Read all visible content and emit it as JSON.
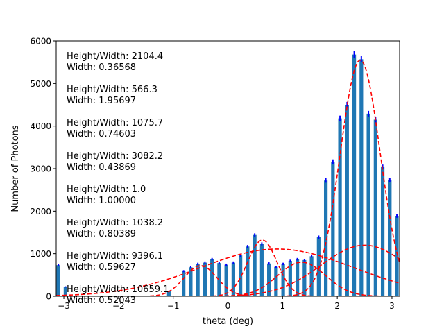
{
  "chart_data": {
    "type": "bar",
    "title": "",
    "xlabel": "theta (deg)",
    "ylabel": "Number of Photons",
    "xlim": [
      -3.14,
      3.14
    ],
    "ylim": [
      0,
      6000
    ],
    "xticks": [
      -3,
      -2,
      -1,
      0,
      1,
      2,
      3
    ],
    "yticks": [
      0,
      1000,
      2000,
      3000,
      4000,
      5000,
      6000
    ],
    "bar_color": "#1f77b4",
    "errorbar_color": "#0000ff",
    "fit_color": "#ff0000",
    "bars": {
      "x": [
        -3.1,
        -2.97,
        -1.08,
        -0.81,
        -0.68,
        -0.55,
        -0.42,
        -0.29,
        -0.16,
        -0.03,
        0.1,
        0.23,
        0.36,
        0.49,
        0.62,
        0.75,
        0.88,
        1.01,
        1.14,
        1.27,
        1.4,
        1.53,
        1.66,
        1.79,
        1.92,
        2.05,
        2.18,
        2.31,
        2.44,
        2.57,
        2.7,
        2.83,
        2.96,
        3.09
      ],
      "y": [
        730,
        220,
        120,
        590,
        680,
        760,
        790,
        870,
        780,
        740,
        790,
        960,
        1170,
        1440,
        1230,
        770,
        690,
        760,
        830,
        870,
        850,
        940,
        1390,
        2720,
        3160,
        4180,
        4500,
        5680,
        5570,
        4290,
        4150,
        3040,
        2730,
        1890
      ]
    },
    "fit_curves": [
      {
        "mu": 2.42,
        "sigma": 0.365,
        "amp": 5550
      },
      {
        "mu": 0.63,
        "sigma": 0.27,
        "amp": 1320
      },
      {
        "mu": 1.35,
        "sigma": 0.44,
        "amp": 800
      },
      {
        "mu": -0.5,
        "sigma": 0.3,
        "amp": 720
      },
      {
        "mu": 0.9,
        "sigma": 1.4,
        "amp": 1110
      },
      {
        "mu": 2.5,
        "sigma": 0.8,
        "amp": 1200
      }
    ],
    "annotations": [
      {
        "height": "Height/Width: 2104.4",
        "width": "Width: 0.36568"
      },
      {
        "height": "Height/Width: 566.3",
        "width": "Width: 1.95697"
      },
      {
        "height": "Height/Width: 1075.7",
        "width": "Width: 0.74603"
      },
      {
        "height": "Height/Width: 3082.2",
        "width": "Width: 0.43869"
      },
      {
        "height": "Height/Width: 1.0",
        "width": "Width: 1.00000"
      },
      {
        "height": "Height/Width: 1038.2",
        "width": "Width: 0.80389"
      },
      {
        "height": "Height/Width: 9396.1",
        "width": "Width: 0.59627"
      },
      {
        "height": "Height/Width: 10659.1",
        "width": "Width: 0.52043"
      }
    ]
  }
}
